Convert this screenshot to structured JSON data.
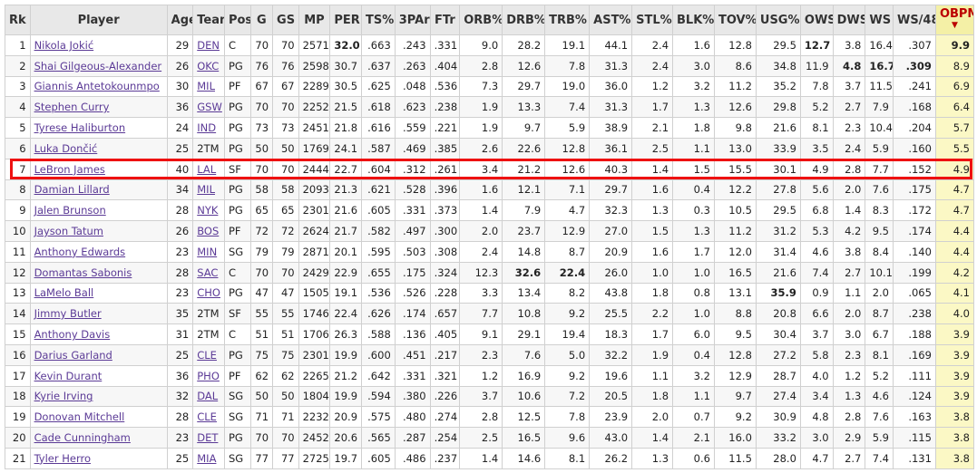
{
  "headers": [
    "Rk",
    "Player",
    "Age",
    "Team",
    "Pos",
    "G",
    "GS",
    "MP",
    "PER",
    "TS%",
    "3PAr",
    "FTr",
    "ORB%",
    "DRB%",
    "TRB%",
    "AST%",
    "STL%",
    "BLK%",
    "TOV%",
    "USG%",
    "OWS",
    "DWS",
    "WS",
    "WS/48",
    "OBPM"
  ],
  "sort_column": "OBPM",
  "sort_indicator": "▼",
  "highlight_color": "#e11111",
  "rows": [
    [
      "1",
      "Nikola Jokić",
      "29",
      "DEN",
      "C",
      "70",
      "70",
      "2571",
      "32.0",
      ".663",
      ".243",
      ".331",
      "9.0",
      "28.2",
      "19.1",
      "44.1",
      "2.4",
      "1.6",
      "12.8",
      "29.5",
      "12.7",
      "3.8",
      "16.4",
      ".307",
      "9.9"
    ],
    [
      "2",
      "Shai Gilgeous-Alexander",
      "26",
      "OKC",
      "PG",
      "76",
      "76",
      "2598",
      "30.7",
      ".637",
      ".263",
      ".404",
      "2.8",
      "12.6",
      "7.8",
      "31.3",
      "2.4",
      "3.0",
      "8.6",
      "34.8",
      "11.9",
      "4.8",
      "16.7",
      ".309",
      "8.9"
    ],
    [
      "3",
      "Giannis Antetokounmpo",
      "30",
      "MIL",
      "PF",
      "67",
      "67",
      "2289",
      "30.5",
      ".625",
      ".048",
      ".536",
      "7.3",
      "29.7",
      "19.0",
      "36.0",
      "1.2",
      "3.2",
      "11.2",
      "35.2",
      "7.8",
      "3.7",
      "11.5",
      ".241",
      "6.9"
    ],
    [
      "4",
      "Stephen Curry",
      "36",
      "GSW",
      "PG",
      "70",
      "70",
      "2252",
      "21.5",
      ".618",
      ".623",
      ".238",
      "1.9",
      "13.3",
      "7.4",
      "31.3",
      "1.7",
      "1.3",
      "12.6",
      "29.8",
      "5.2",
      "2.7",
      "7.9",
      ".168",
      "6.4"
    ],
    [
      "5",
      "Tyrese Haliburton",
      "24",
      "IND",
      "PG",
      "73",
      "73",
      "2451",
      "21.8",
      ".616",
      ".559",
      ".221",
      "1.9",
      "9.7",
      "5.9",
      "38.9",
      "2.1",
      "1.8",
      "9.8",
      "21.6",
      "8.1",
      "2.3",
      "10.4",
      ".204",
      "5.7"
    ],
    [
      "6",
      "Luka Dončić",
      "25",
      "2TM",
      "PG",
      "50",
      "50",
      "1769",
      "24.1",
      ".587",
      ".469",
      ".385",
      "2.6",
      "22.6",
      "12.8",
      "36.1",
      "2.5",
      "1.1",
      "13.0",
      "33.9",
      "3.5",
      "2.4",
      "5.9",
      ".160",
      "5.5"
    ],
    [
      "7",
      "LeBron James",
      "40",
      "LAL",
      "SF",
      "70",
      "70",
      "2444",
      "22.7",
      ".604",
      ".312",
      ".261",
      "3.4",
      "21.2",
      "12.6",
      "40.3",
      "1.4",
      "1.5",
      "15.5",
      "30.1",
      "4.9",
      "2.8",
      "7.7",
      ".152",
      "4.9"
    ],
    [
      "8",
      "Damian Lillard",
      "34",
      "MIL",
      "PG",
      "58",
      "58",
      "2093",
      "21.3",
      ".621",
      ".528",
      ".396",
      "1.6",
      "12.1",
      "7.1",
      "29.7",
      "1.6",
      "0.4",
      "12.2",
      "27.8",
      "5.6",
      "2.0",
      "7.6",
      ".175",
      "4.7"
    ],
    [
      "9",
      "Jalen Brunson",
      "28",
      "NYK",
      "PG",
      "65",
      "65",
      "2301",
      "21.6",
      ".605",
      ".331",
      ".373",
      "1.4",
      "7.9",
      "4.7",
      "32.3",
      "1.3",
      "0.3",
      "10.5",
      "29.5",
      "6.8",
      "1.4",
      "8.3",
      ".172",
      "4.7"
    ],
    [
      "10",
      "Jayson Tatum",
      "26",
      "BOS",
      "PF",
      "72",
      "72",
      "2624",
      "21.7",
      ".582",
      ".497",
      ".300",
      "2.0",
      "23.7",
      "12.9",
      "27.0",
      "1.5",
      "1.3",
      "11.2",
      "31.2",
      "5.3",
      "4.2",
      "9.5",
      ".174",
      "4.4"
    ],
    [
      "11",
      "Anthony Edwards",
      "23",
      "MIN",
      "SG",
      "79",
      "79",
      "2871",
      "20.1",
      ".595",
      ".503",
      ".308",
      "2.4",
      "14.8",
      "8.7",
      "20.9",
      "1.6",
      "1.7",
      "12.0",
      "31.4",
      "4.6",
      "3.8",
      "8.4",
      ".140",
      "4.4"
    ],
    [
      "12",
      "Domantas Sabonis",
      "28",
      "SAC",
      "C",
      "70",
      "70",
      "2429",
      "22.9",
      ".655",
      ".175",
      ".324",
      "12.3",
      "32.6",
      "22.4",
      "26.0",
      "1.0",
      "1.0",
      "16.5",
      "21.6",
      "7.4",
      "2.7",
      "10.1",
      ".199",
      "4.2"
    ],
    [
      "13",
      "LaMelo Ball",
      "23",
      "CHO",
      "PG",
      "47",
      "47",
      "1505",
      "19.1",
      ".536",
      ".526",
      ".228",
      "3.3",
      "13.4",
      "8.2",
      "43.8",
      "1.8",
      "0.8",
      "13.1",
      "35.9",
      "0.9",
      "1.1",
      "2.0",
      ".065",
      "4.1"
    ],
    [
      "14",
      "Jimmy Butler",
      "35",
      "2TM",
      "SF",
      "55",
      "55",
      "1746",
      "22.4",
      ".626",
      ".174",
      ".657",
      "7.7",
      "10.8",
      "9.2",
      "25.5",
      "2.2",
      "1.0",
      "8.8",
      "20.8",
      "6.6",
      "2.0",
      "8.7",
      ".238",
      "4.0"
    ],
    [
      "15",
      "Anthony Davis",
      "31",
      "2TM",
      "C",
      "51",
      "51",
      "1706",
      "26.3",
      ".588",
      ".136",
      ".405",
      "9.1",
      "29.1",
      "19.4",
      "18.3",
      "1.7",
      "6.0",
      "9.5",
      "30.4",
      "3.7",
      "3.0",
      "6.7",
      ".188",
      "3.9"
    ],
    [
      "16",
      "Darius Garland",
      "25",
      "CLE",
      "PG",
      "75",
      "75",
      "2301",
      "19.9",
      ".600",
      ".451",
      ".217",
      "2.3",
      "7.6",
      "5.0",
      "32.2",
      "1.9",
      "0.4",
      "12.8",
      "27.2",
      "5.8",
      "2.3",
      "8.1",
      ".169",
      "3.9"
    ],
    [
      "17",
      "Kevin Durant",
      "36",
      "PHO",
      "PF",
      "62",
      "62",
      "2265",
      "21.2",
      ".642",
      ".331",
      ".321",
      "1.2",
      "16.9",
      "9.2",
      "19.6",
      "1.1",
      "3.2",
      "12.9",
      "28.7",
      "4.0",
      "1.2",
      "5.2",
      ".111",
      "3.9"
    ],
    [
      "18",
      "Kyrie Irving",
      "32",
      "DAL",
      "SG",
      "50",
      "50",
      "1804",
      "19.9",
      ".594",
      ".380",
      ".226",
      "3.7",
      "10.6",
      "7.2",
      "20.5",
      "1.8",
      "1.1",
      "9.7",
      "27.4",
      "3.4",
      "1.3",
      "4.6",
      ".124",
      "3.9"
    ],
    [
      "19",
      "Donovan Mitchell",
      "28",
      "CLE",
      "SG",
      "71",
      "71",
      "2232",
      "20.9",
      ".575",
      ".480",
      ".274",
      "2.8",
      "12.5",
      "7.8",
      "23.9",
      "2.0",
      "0.7",
      "9.2",
      "30.9",
      "4.8",
      "2.8",
      "7.6",
      ".163",
      "3.8"
    ],
    [
      "20",
      "Cade Cunningham",
      "23",
      "DET",
      "PG",
      "70",
      "70",
      "2452",
      "20.6",
      ".565",
      ".287",
      ".254",
      "2.5",
      "16.5",
      "9.6",
      "43.0",
      "1.4",
      "2.1",
      "16.0",
      "33.2",
      "3.0",
      "2.9",
      "5.9",
      ".115",
      "3.8"
    ],
    [
      "21",
      "Tyler Herro",
      "25",
      "MIA",
      "SG",
      "77",
      "77",
      "2725",
      "19.7",
      ".605",
      ".486",
      ".237",
      "1.4",
      "14.6",
      "8.1",
      "26.2",
      "1.3",
      "0.6",
      "11.5",
      "28.0",
      "4.7",
      "2.7",
      "7.4",
      ".131",
      "3.8"
    ]
  ],
  "bold_cells": [
    [
      0,
      8
    ],
    [
      0,
      20
    ],
    [
      0,
      24
    ],
    [
      1,
      21
    ],
    [
      1,
      22
    ],
    [
      1,
      23
    ],
    [
      11,
      13
    ],
    [
      11,
      14
    ],
    [
      12,
      19
    ]
  ]
}
